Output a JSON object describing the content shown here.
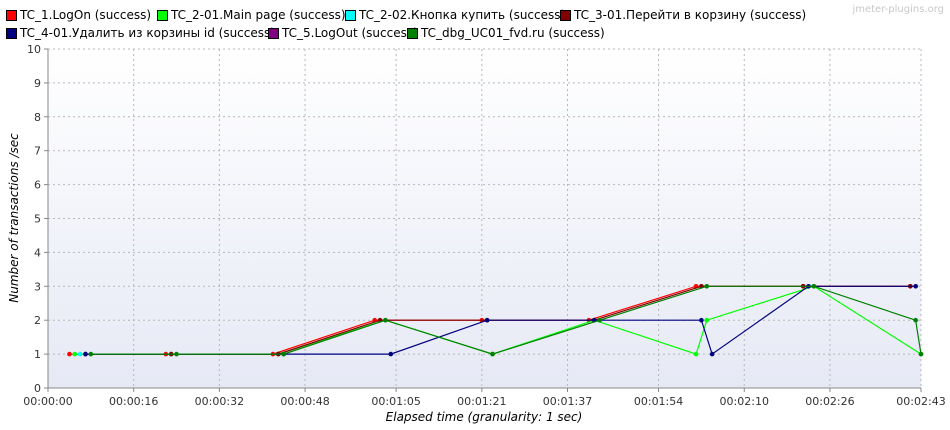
{
  "watermark": "jmeter-plugins.org",
  "chart_data": {
    "type": "line",
    "xlabel": "Elapsed time (granularity: 1 sec)",
    "ylabel": "Number of transactions /sec",
    "ylim": [
      0,
      10
    ],
    "xlim": [
      0,
      163
    ],
    "x_ticks": [
      {
        "v": 0,
        "label": "00:00:00"
      },
      {
        "v": 16,
        "label": "00:00:16"
      },
      {
        "v": 32,
        "label": "00:00:32"
      },
      {
        "v": 48,
        "label": "00:00:48"
      },
      {
        "v": 65,
        "label": "00:01:05"
      },
      {
        "v": 81,
        "label": "00:01:21"
      },
      {
        "v": 97,
        "label": "00:01:37"
      },
      {
        "v": 114,
        "label": "00:01:54"
      },
      {
        "v": 130,
        "label": "00:02:10"
      },
      {
        "v": 146,
        "label": "00:02:26"
      },
      {
        "v": 163,
        "label": "00:02:43"
      }
    ],
    "y_ticks": [
      0,
      1,
      2,
      3,
      4,
      5,
      6,
      7,
      8,
      9,
      10
    ],
    "grid": true,
    "legend_position": "top",
    "series": [
      {
        "name": "TC_1.LogOn (success)",
        "color": "#ff0000",
        "x": [
          4,
          22,
          42,
          61,
          81,
          101,
          121,
          141,
          161
        ],
        "y": [
          1,
          1,
          1,
          2,
          2,
          2,
          3,
          3,
          3
        ]
      },
      {
        "name": "TC_2-01.Main page (success)",
        "color": "#00ff00",
        "x": [
          5,
          23,
          43,
          63,
          83,
          102,
          121,
          123,
          143,
          163
        ],
        "y": [
          1,
          1,
          1,
          2,
          1,
          2,
          1,
          2,
          3,
          1
        ]
      },
      {
        "name": "TC_2-02.Кнопка купить (success)",
        "color": "#00ffff",
        "x": [
          6
        ],
        "y": [
          1
        ]
      },
      {
        "name": "TC_3-01.Перейти в корзину (success)",
        "color": "#800000",
        "x": [
          7,
          23,
          43,
          62,
          82,
          102,
          122,
          141,
          161
        ],
        "y": [
          1,
          1,
          1,
          2,
          2,
          2,
          3,
          3,
          3
        ]
      },
      {
        "name": "TC_4-01.Удалить из корзины id (success)",
        "color": "#000080",
        "x": [
          7,
          44,
          64,
          82,
          102,
          122,
          124,
          142,
          162
        ],
        "y": [
          1,
          1,
          1,
          2,
          2,
          2,
          1,
          3,
          3
        ]
      },
      {
        "name": "TC_5.LogOut (success)",
        "color": "#800080",
        "x": [],
        "y": []
      },
      {
        "name": "TC_dbg_UC01_fvd.ru (success)",
        "color": "#008000",
        "x": [
          8,
          24,
          44,
          63,
          83,
          103,
          123,
          143,
          162,
          163
        ],
        "y": [
          1,
          1,
          1,
          2,
          1,
          2,
          3,
          3,
          2,
          1
        ]
      }
    ]
  }
}
